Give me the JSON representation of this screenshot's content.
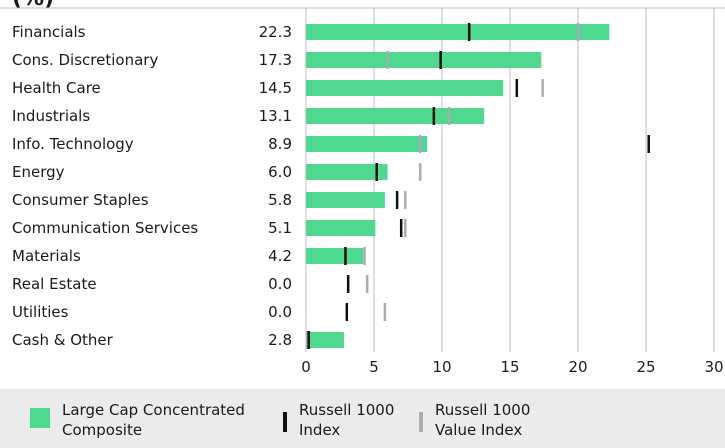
{
  "title": "(%)",
  "colors": {
    "composite": "#50d890",
    "russell1000": "#111111",
    "russell1000value": "#a9acb3",
    "grid": "#b8bcc4",
    "legend_bg": "#ebebeb"
  },
  "chart_data": {
    "type": "bar",
    "orientation": "horizontal",
    "categories": [
      "Financials",
      "Cons. Discretionary",
      "Health Care",
      "Industrials",
      "Info. Technology",
      "Energy",
      "Consumer Staples",
      "Communication Services",
      "Materials",
      "Real Estate",
      "Utilities",
      "Cash & Other"
    ],
    "value_labels": [
      "22.3",
      "17.3",
      "14.5",
      "13.1",
      "8.9",
      "6.0",
      "5.8",
      "5.1",
      "4.2",
      "0.0",
      "0.0",
      "2.8"
    ],
    "series": [
      {
        "name": "Large Cap Concentrated Composite",
        "mark": "bar",
        "values": [
          22.3,
          17.3,
          14.5,
          13.1,
          8.9,
          6.0,
          5.8,
          5.1,
          4.2,
          0.0,
          0.0,
          2.8
        ]
      },
      {
        "name": "Russell 1000 Index",
        "mark": "tick",
        "values": [
          12.0,
          9.9,
          15.5,
          9.4,
          25.2,
          5.2,
          6.7,
          7.0,
          2.9,
          3.1,
          3.0,
          0.2
        ]
      },
      {
        "name": "Russell 1000 Value Index",
        "mark": "tick",
        "values": [
          20.0,
          6.0,
          17.4,
          10.5,
          8.4,
          8.4,
          7.3,
          7.3,
          4.3,
          4.5,
          5.8,
          0.1
        ]
      }
    ],
    "xlim": [
      0,
      30
    ],
    "xticks": [
      0,
      5,
      10,
      15,
      20,
      25,
      30
    ],
    "grid": true,
    "legend_position": "bottom"
  },
  "legend": [
    {
      "key": "composite",
      "line1": "Large Cap Concentrated",
      "line2": "Composite"
    },
    {
      "key": "russell1000",
      "line1": "Russell 1000",
      "line2": "Index"
    },
    {
      "key": "russell1000value",
      "line1": "Russell 1000",
      "line2": "Value Index"
    }
  ]
}
